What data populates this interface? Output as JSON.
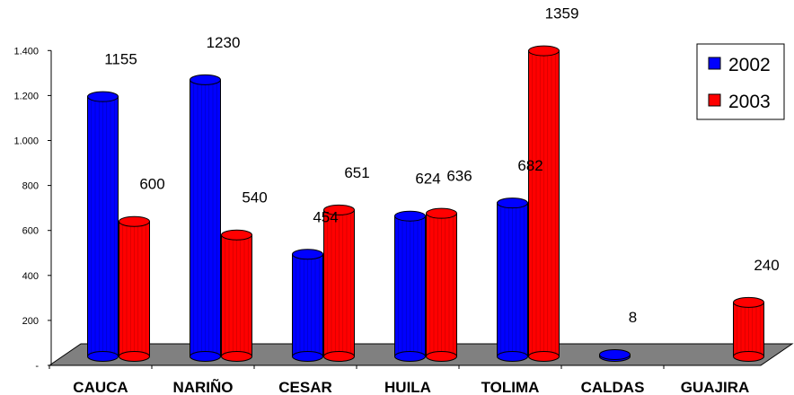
{
  "chart_data": {
    "type": "bar",
    "title": "",
    "xlabel": "",
    "ylabel": "",
    "ylim": [
      0,
      1400
    ],
    "yticks": [
      0,
      200,
      400,
      600,
      800,
      1000,
      1200,
      1400
    ],
    "ytick_labels": [
      "-",
      "200",
      "400",
      "600",
      "800",
      "1.000",
      "1.200",
      "1.400"
    ],
    "categories": [
      "CAUCA",
      "NARIÑO",
      "CESAR",
      "HUILA",
      "TOLIMA",
      "CALDAS",
      "GUAJIRA"
    ],
    "series": [
      {
        "name": "2002",
        "color": "#0000ff",
        "values": [
          1155,
          1230,
          454,
          624,
          682,
          8,
          null
        ],
        "labels": [
          "1155",
          "1230",
          "454",
          "624",
          "682",
          "8",
          ""
        ]
      },
      {
        "name": "2003",
        "color": "#ff0000",
        "values": [
          600,
          540,
          651,
          636,
          1359,
          null,
          240
        ],
        "labels": [
          "600",
          "540",
          "651",
          "636",
          "1359",
          "",
          "240"
        ]
      }
    ],
    "legend_position": "top-right",
    "grid": false,
    "style": "3d-cylinder"
  }
}
